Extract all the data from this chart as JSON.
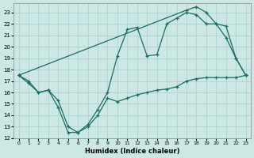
{
  "xlabel": "Humidex (Indice chaleur)",
  "background_color": "#cce8e4",
  "grid_color": "#aacfcc",
  "line_color": "#1a6b60",
  "xlim": [
    -0.5,
    23.5
  ],
  "ylim": [
    12,
    23.8
  ],
  "yticks": [
    12,
    13,
    14,
    15,
    16,
    17,
    18,
    19,
    20,
    21,
    22,
    23
  ],
  "xticks": [
    0,
    1,
    2,
    3,
    4,
    5,
    6,
    7,
    8,
    9,
    10,
    11,
    12,
    13,
    14,
    15,
    16,
    17,
    18,
    19,
    20,
    21,
    22,
    23
  ],
  "line1_x": [
    0,
    1,
    2,
    3,
    4,
    5,
    6,
    7,
    8,
    9,
    10,
    11,
    12,
    13,
    14,
    15,
    16,
    17,
    18,
    19,
    20,
    21,
    22,
    23
  ],
  "line1_y": [
    17.5,
    17.0,
    16.0,
    16.2,
    15.3,
    13.0,
    12.5,
    13.2,
    14.5,
    16.0,
    19.2,
    21.5,
    21.7,
    19.2,
    19.3,
    22.0,
    22.5,
    23.0,
    22.8,
    22.0,
    22.0,
    20.8,
    19.0,
    17.5
  ],
  "line2_x": [
    0,
    17,
    18,
    19,
    20,
    21,
    22,
    23
  ],
  "line2_y": [
    17.5,
    23.2,
    23.5,
    23.0,
    22.0,
    21.8,
    19.0,
    17.5
  ],
  "line3_x": [
    0,
    1,
    2,
    3,
    4,
    5,
    6,
    7,
    8,
    9,
    10,
    11,
    12,
    13,
    14,
    15,
    16,
    17,
    18,
    19,
    20,
    21,
    22,
    23
  ],
  "line3_y": [
    17.5,
    16.8,
    16.0,
    16.2,
    14.7,
    12.5,
    12.5,
    13.0,
    14.0,
    15.5,
    15.2,
    15.5,
    15.8,
    16.0,
    16.2,
    16.3,
    16.5,
    17.0,
    17.2,
    17.3,
    17.3,
    17.3,
    17.3,
    17.5
  ]
}
